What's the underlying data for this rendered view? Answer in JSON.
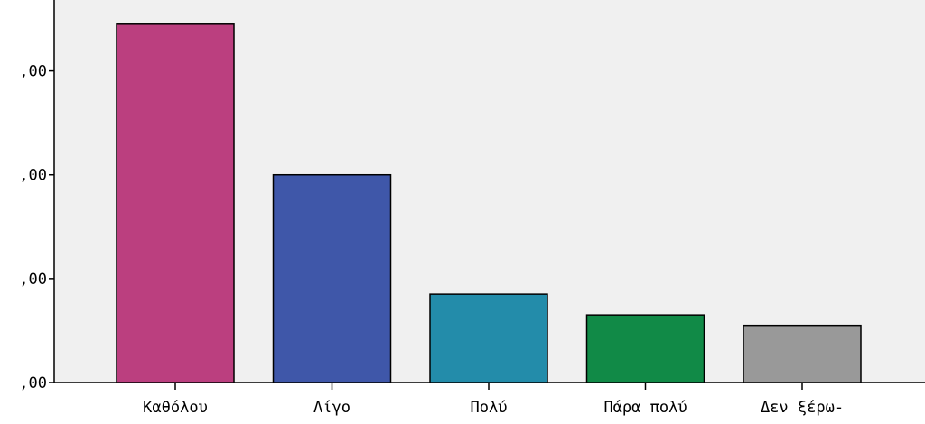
{
  "chart_data": {
    "type": "bar",
    "categories": [
      "Καθόλου",
      "Λίγο",
      "Πολύ",
      "Πάρα πολύ",
      "Δεν ξέρω-"
    ],
    "values": [
      69.0,
      40.0,
      17.0,
      13.0,
      11.0
    ],
    "y_tick_labels": [
      ",00",
      ",00",
      ",00",
      ",00"
    ],
    "y_tick_values": [
      0,
      20,
      40,
      60
    ],
    "ylim": [
      0,
      74
    ],
    "title": "",
    "xlabel": "",
    "ylabel": "",
    "grid": false,
    "colors": [
      "#bb3f7f",
      "#3f57a9",
      "#238caa",
      "#118a47",
      "#999999"
    ],
    "plot_background": "#f0f0f0"
  }
}
